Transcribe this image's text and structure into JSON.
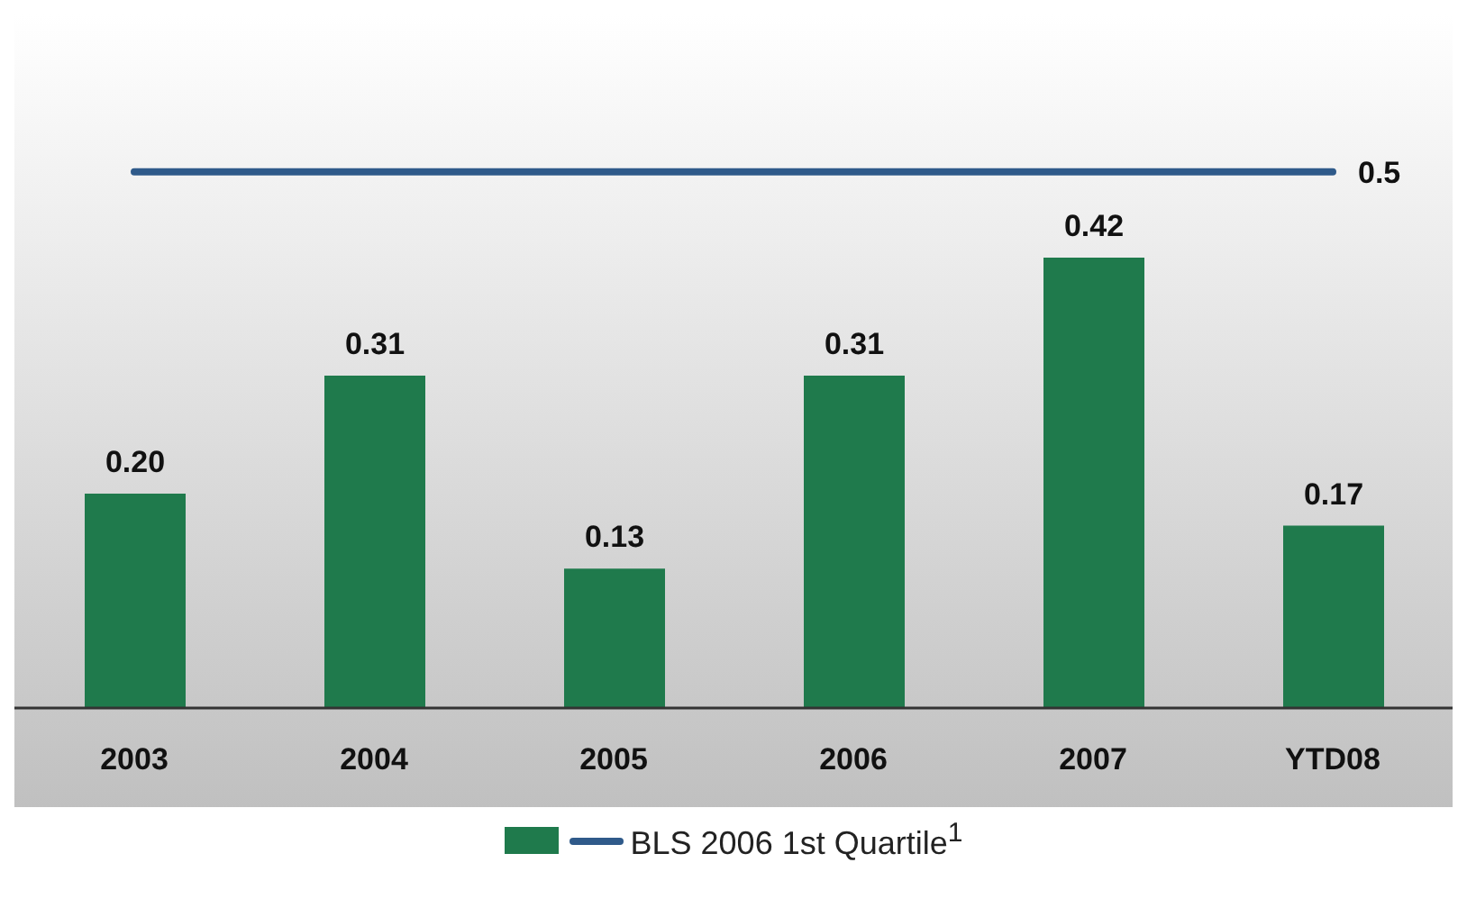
{
  "chart_data": {
    "type": "bar",
    "categories": [
      "2003",
      "2004",
      "2005",
      "2006",
      "2007",
      "YTD08"
    ],
    "series": [
      {
        "color": "#1f7a4c",
        "values": [
          0.2,
          0.31,
          0.13,
          0.31,
          0.42,
          0.17
        ],
        "value_labels": [
          "0.20",
          "0.31",
          "0.13",
          "0.31",
          "0.42",
          "0.17"
        ]
      },
      {
        "type": "line",
        "name": "BLS 2006 1st Quartile$^{1}$",
        "color": "#2f5a8a",
        "values": [
          0.5,
          0.5,
          0.5,
          0.5,
          0.5,
          0.5
        ],
        "value_labels": [
          null,
          null,
          null,
          null,
          null,
          "0.5"
        ]
      }
    ],
    "legend": "bottom",
    "grid": false
  }
}
